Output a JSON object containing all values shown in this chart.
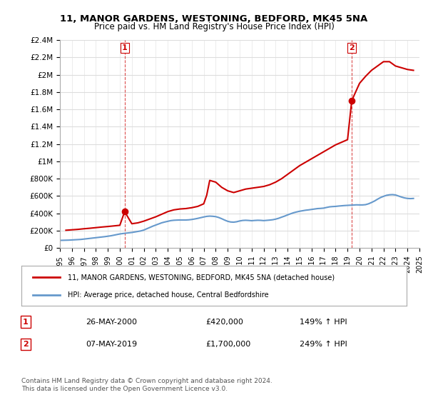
{
  "title": "11, MANOR GARDENS, WESTONING, BEDFORD, MK45 5NA",
  "subtitle": "Price paid vs. HM Land Registry's House Price Index (HPI)",
  "ylabel_ticks": [
    "£0",
    "£200K",
    "£400K",
    "£600K",
    "£800K",
    "£1M",
    "£1.2M",
    "£1.4M",
    "£1.6M",
    "£1.8M",
    "£2M",
    "£2.2M",
    "£2.4M"
  ],
  "ytick_values": [
    0,
    200000,
    400000,
    600000,
    800000,
    1000000,
    1200000,
    1400000,
    1600000,
    1800000,
    2000000,
    2200000,
    2400000
  ],
  "ylim": [
    0,
    2400000
  ],
  "x_start_year": 1995,
  "x_end_year": 2025,
  "hpi_color": "#6699cc",
  "price_color": "#cc0000",
  "marker1_year": 2000.4,
  "marker1_price": 420000,
  "marker2_year": 2019.35,
  "marker2_price": 1700000,
  "legend_label1": "11, MANOR GARDENS, WESTONING, BEDFORD, MK45 5NA (detached house)",
  "legend_label2": "HPI: Average price, detached house, Central Bedfordshire",
  "annotation1_label": "1",
  "annotation2_label": "2",
  "table_row1": [
    "1",
    "26-MAY-2000",
    "£420,000",
    "149% ↑ HPI"
  ],
  "table_row2": [
    "2",
    "07-MAY-2019",
    "£1,700,000",
    "249% ↑ HPI"
  ],
  "footer": "Contains HM Land Registry data © Crown copyright and database right 2024.\nThis data is licensed under the Open Government Licence v3.0.",
  "background_color": "#ffffff",
  "grid_color": "#dddddd",
  "hpi_data_x": [
    1995.0,
    1995.25,
    1995.5,
    1995.75,
    1996.0,
    1996.25,
    1996.5,
    1996.75,
    1997.0,
    1997.25,
    1997.5,
    1997.75,
    1998.0,
    1998.25,
    1998.5,
    1998.75,
    1999.0,
    1999.25,
    1999.5,
    1999.75,
    2000.0,
    2000.25,
    2000.5,
    2000.75,
    2001.0,
    2001.25,
    2001.5,
    2001.75,
    2002.0,
    2002.25,
    2002.5,
    2002.75,
    2003.0,
    2003.25,
    2003.5,
    2003.75,
    2004.0,
    2004.25,
    2004.5,
    2004.75,
    2005.0,
    2005.25,
    2005.5,
    2005.75,
    2006.0,
    2006.25,
    2006.5,
    2006.75,
    2007.0,
    2007.25,
    2007.5,
    2007.75,
    2008.0,
    2008.25,
    2008.5,
    2008.75,
    2009.0,
    2009.25,
    2009.5,
    2009.75,
    2010.0,
    2010.25,
    2010.5,
    2010.75,
    2011.0,
    2011.25,
    2011.5,
    2011.75,
    2012.0,
    2012.25,
    2012.5,
    2012.75,
    2013.0,
    2013.25,
    2013.5,
    2013.75,
    2014.0,
    2014.25,
    2014.5,
    2014.75,
    2015.0,
    2015.25,
    2015.5,
    2015.75,
    2016.0,
    2016.25,
    2016.5,
    2016.75,
    2017.0,
    2017.25,
    2017.5,
    2017.75,
    2018.0,
    2018.25,
    2018.5,
    2018.75,
    2019.0,
    2019.25,
    2019.5,
    2019.75,
    2020.0,
    2020.25,
    2020.5,
    2020.75,
    2021.0,
    2021.25,
    2021.5,
    2021.75,
    2022.0,
    2022.25,
    2022.5,
    2022.75,
    2023.0,
    2023.25,
    2023.5,
    2023.75,
    2024.0,
    2024.25,
    2024.5
  ],
  "hpi_data_y": [
    88000,
    89000,
    90000,
    91000,
    93000,
    95000,
    97000,
    99000,
    103000,
    107000,
    111000,
    115000,
    119000,
    123000,
    127000,
    131000,
    136000,
    141000,
    148000,
    155000,
    162000,
    167000,
    171000,
    175000,
    179000,
    185000,
    191000,
    197000,
    207000,
    222000,
    237000,
    252000,
    265000,
    278000,
    291000,
    300000,
    308000,
    316000,
    320000,
    322000,
    323000,
    323000,
    323000,
    325000,
    329000,
    335000,
    342000,
    350000,
    358000,
    365000,
    368000,
    366000,
    362000,
    352000,
    338000,
    322000,
    308000,
    300000,
    298000,
    303000,
    312000,
    318000,
    320000,
    318000,
    315000,
    318000,
    320000,
    319000,
    316000,
    319000,
    322000,
    326000,
    333000,
    343000,
    356000,
    368000,
    382000,
    395000,
    407000,
    416000,
    424000,
    430000,
    436000,
    440000,
    445000,
    450000,
    455000,
    457000,
    460000,
    468000,
    475000,
    478000,
    480000,
    484000,
    487000,
    490000,
    492000,
    494000,
    496000,
    498000,
    497000,
    497000,
    500000,
    510000,
    525000,
    542000,
    563000,
    582000,
    596000,
    608000,
    614000,
    616000,
    612000,
    600000,
    588000,
    578000,
    572000,
    570000,
    572000
  ],
  "price_data_x": [
    1995.5,
    1996.0,
    1996.5,
    1997.0,
    1997.5,
    1998.0,
    1998.5,
    1999.0,
    1999.5,
    2000.0,
    2000.4,
    2001.0,
    2001.5,
    2002.0,
    2002.5,
    2003.0,
    2003.5,
    2004.0,
    2004.5,
    2005.0,
    2005.5,
    2006.0,
    2006.5,
    2007.0,
    2007.25,
    2007.5,
    2008.0,
    2008.5,
    2009.0,
    2009.5,
    2010.0,
    2010.5,
    2011.0,
    2011.5,
    2012.0,
    2012.5,
    2013.0,
    2013.5,
    2014.0,
    2014.5,
    2015.0,
    2015.5,
    2016.0,
    2016.5,
    2017.0,
    2017.5,
    2018.0,
    2018.5,
    2019.0,
    2019.35,
    2020.0,
    2020.5,
    2021.0,
    2021.5,
    2022.0,
    2022.5,
    2023.0,
    2023.5,
    2024.0,
    2024.5
  ],
  "price_data_y": [
    205000,
    210000,
    215000,
    222000,
    228000,
    235000,
    242000,
    248000,
    255000,
    262000,
    420000,
    280000,
    290000,
    310000,
    335000,
    360000,
    390000,
    420000,
    440000,
    450000,
    455000,
    465000,
    480000,
    510000,
    610000,
    780000,
    760000,
    700000,
    660000,
    640000,
    660000,
    680000,
    690000,
    700000,
    710000,
    730000,
    760000,
    800000,
    850000,
    900000,
    950000,
    990000,
    1030000,
    1070000,
    1110000,
    1150000,
    1190000,
    1220000,
    1250000,
    1700000,
    1900000,
    1980000,
    2050000,
    2100000,
    2150000,
    2150000,
    2100000,
    2080000,
    2060000,
    2050000
  ]
}
